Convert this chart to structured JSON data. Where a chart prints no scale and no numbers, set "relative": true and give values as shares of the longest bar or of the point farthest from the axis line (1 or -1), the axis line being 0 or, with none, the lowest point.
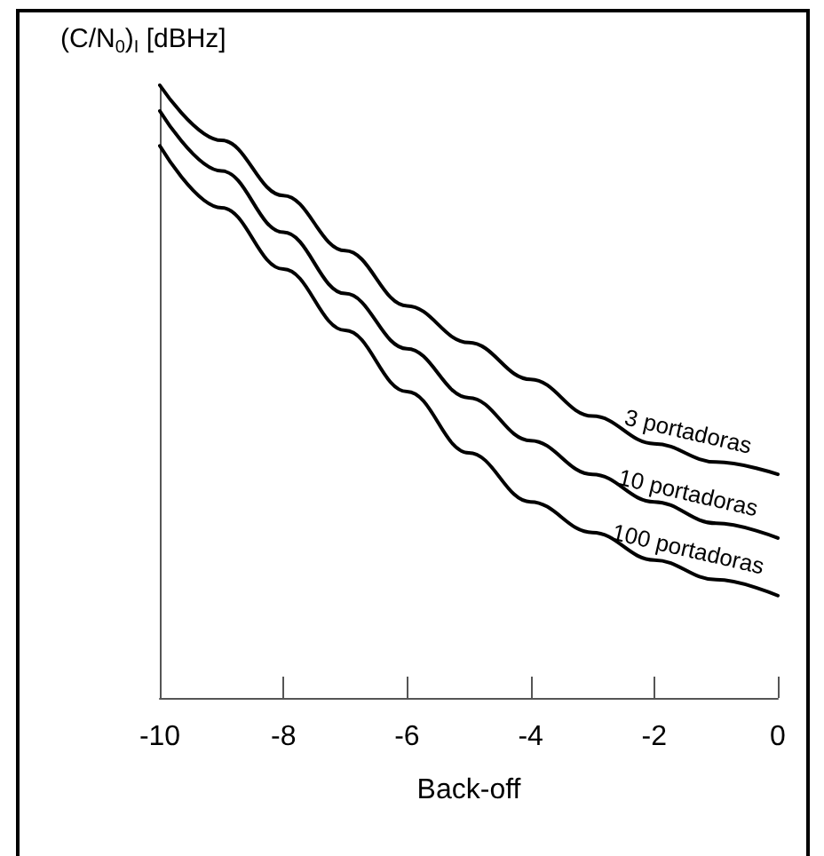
{
  "chart_data": {
    "type": "line",
    "relative": true,
    "xlabel": "Back-off",
    "ylabel": "(C/N$_{0}$)$_{I}$ [dBHz]",
    "x": [
      -10,
      -9,
      -8,
      -7,
      -6,
      -5,
      -4,
      -3,
      -2,
      -1,
      0
    ],
    "xlim": [
      -10,
      0
    ],
    "xticks": [
      -10,
      -8,
      -6,
      -4,
      -2,
      0
    ],
    "grid": false,
    "legend": false,
    "marker": "none",
    "line_style": "solid",
    "series": [
      {
        "name": "3 portadoras",
        "color": "#000000",
        "values": [
          1,
          0.91,
          0.82,
          0.73,
          0.64,
          0.58,
          0.52,
          0.46,
          0.415,
          0.385,
          0.365
        ]
      },
      {
        "name": "10 portadoras",
        "color": "#000000",
        "values": [
          0.958,
          0.86,
          0.76,
          0.66,
          0.57,
          0.49,
          0.42,
          0.365,
          0.32,
          0.285,
          0.261
        ]
      },
      {
        "name": "100 portadoras",
        "color": "#000000",
        "values": [
          0.901,
          0.8,
          0.7,
          0.6,
          0.5,
          0.4,
          0.32,
          0.27,
          0.225,
          0.193,
          0.167
        ]
      }
    ]
  }
}
